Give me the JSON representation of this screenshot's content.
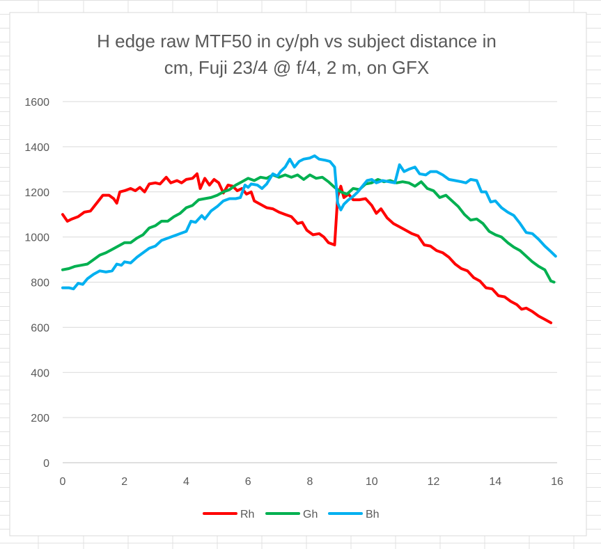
{
  "chart_data": {
    "type": "line",
    "title_lines": [
      "H edge raw MTF50 in cy/ph vs subject distance in",
      "cm, Fuji 23/4 @ f/4, 2 m, on GFX"
    ],
    "xlim": [
      0,
      16
    ],
    "ylim": [
      0,
      1600
    ],
    "x_ticks": [
      "0",
      "2",
      "4",
      "6",
      "8",
      "10",
      "12",
      "14",
      "16"
    ],
    "y_ticks": [
      "0",
      "200",
      "400",
      "600",
      "800",
      "1000",
      "1200",
      "1400",
      "1600"
    ],
    "grid": "horizontal",
    "legend_position": "bottom",
    "series": [
      {
        "name": "Rh",
        "color": "#ff0000",
        "points": [
          [
            0,
            1100
          ],
          [
            0.15,
            1070
          ],
          [
            0.3,
            1080
          ],
          [
            0.5,
            1090
          ],
          [
            0.7,
            1110
          ],
          [
            0.9,
            1115
          ],
          [
            1.1,
            1150
          ],
          [
            1.3,
            1185
          ],
          [
            1.5,
            1185
          ],
          [
            1.65,
            1170
          ],
          [
            1.75,
            1150
          ],
          [
            1.85,
            1200
          ],
          [
            2.0,
            1205
          ],
          [
            2.2,
            1215
          ],
          [
            2.35,
            1205
          ],
          [
            2.5,
            1220
          ],
          [
            2.65,
            1200
          ],
          [
            2.8,
            1235
          ],
          [
            3.0,
            1240
          ],
          [
            3.15,
            1235
          ],
          [
            3.35,
            1265
          ],
          [
            3.5,
            1240
          ],
          [
            3.7,
            1250
          ],
          [
            3.85,
            1240
          ],
          [
            4.0,
            1255
          ],
          [
            4.2,
            1260
          ],
          [
            4.35,
            1280
          ],
          [
            4.45,
            1215
          ],
          [
            4.6,
            1260
          ],
          [
            4.75,
            1230
          ],
          [
            4.9,
            1255
          ],
          [
            5.05,
            1240
          ],
          [
            5.2,
            1195
          ],
          [
            5.35,
            1230
          ],
          [
            5.5,
            1225
          ],
          [
            5.65,
            1205
          ],
          [
            5.8,
            1215
          ],
          [
            5.95,
            1190
          ],
          [
            6.1,
            1200
          ],
          [
            6.2,
            1160
          ],
          [
            6.4,
            1145
          ],
          [
            6.6,
            1130
          ],
          [
            6.8,
            1125
          ],
          [
            7.0,
            1110
          ],
          [
            7.2,
            1100
          ],
          [
            7.4,
            1090
          ],
          [
            7.6,
            1060
          ],
          [
            7.75,
            1065
          ],
          [
            7.9,
            1030
          ],
          [
            8.1,
            1010
          ],
          [
            8.3,
            1015
          ],
          [
            8.45,
            1000
          ],
          [
            8.6,
            975
          ],
          [
            8.8,
            965
          ],
          [
            8.9,
            1180
          ],
          [
            9.0,
            1225
          ],
          [
            9.1,
            1175
          ],
          [
            9.25,
            1190
          ],
          [
            9.4,
            1165
          ],
          [
            9.6,
            1165
          ],
          [
            9.8,
            1170
          ],
          [
            10.0,
            1140
          ],
          [
            10.15,
            1105
          ],
          [
            10.3,
            1125
          ],
          [
            10.5,
            1085
          ],
          [
            10.7,
            1060
          ],
          [
            10.9,
            1045
          ],
          [
            11.1,
            1030
          ],
          [
            11.3,
            1015
          ],
          [
            11.5,
            1005
          ],
          [
            11.7,
            965
          ],
          [
            11.9,
            960
          ],
          [
            12.1,
            940
          ],
          [
            12.3,
            930
          ],
          [
            12.5,
            910
          ],
          [
            12.7,
            880
          ],
          [
            12.9,
            860
          ],
          [
            13.1,
            850
          ],
          [
            13.3,
            820
          ],
          [
            13.5,
            805
          ],
          [
            13.7,
            775
          ],
          [
            13.9,
            770
          ],
          [
            14.1,
            740
          ],
          [
            14.3,
            735
          ],
          [
            14.5,
            715
          ],
          [
            14.7,
            700
          ],
          [
            14.85,
            680
          ],
          [
            15.0,
            685
          ],
          [
            15.2,
            670
          ],
          [
            15.4,
            650
          ],
          [
            15.6,
            635
          ],
          [
            15.8,
            620
          ]
        ]
      },
      {
        "name": "Gh",
        "color": "#00b050",
        "points": [
          [
            0,
            855
          ],
          [
            0.2,
            860
          ],
          [
            0.4,
            870
          ],
          [
            0.6,
            875
          ],
          [
            0.8,
            880
          ],
          [
            1.0,
            900
          ],
          [
            1.2,
            920
          ],
          [
            1.4,
            930
          ],
          [
            1.6,
            945
          ],
          [
            1.8,
            960
          ],
          [
            2.0,
            975
          ],
          [
            2.2,
            975
          ],
          [
            2.4,
            995
          ],
          [
            2.6,
            1010
          ],
          [
            2.8,
            1040
          ],
          [
            3.0,
            1050
          ],
          [
            3.2,
            1070
          ],
          [
            3.4,
            1070
          ],
          [
            3.6,
            1090
          ],
          [
            3.8,
            1105
          ],
          [
            4.0,
            1130
          ],
          [
            4.2,
            1140
          ],
          [
            4.4,
            1165
          ],
          [
            4.6,
            1170
          ],
          [
            4.8,
            1175
          ],
          [
            5.0,
            1185
          ],
          [
            5.2,
            1200
          ],
          [
            5.4,
            1210
          ],
          [
            5.6,
            1230
          ],
          [
            5.8,
            1245
          ],
          [
            6.0,
            1260
          ],
          [
            6.2,
            1250
          ],
          [
            6.4,
            1265
          ],
          [
            6.6,
            1260
          ],
          [
            6.8,
            1275
          ],
          [
            7.0,
            1265
          ],
          [
            7.2,
            1275
          ],
          [
            7.4,
            1265
          ],
          [
            7.6,
            1275
          ],
          [
            7.8,
            1255
          ],
          [
            8.0,
            1275
          ],
          [
            8.2,
            1260
          ],
          [
            8.4,
            1265
          ],
          [
            8.6,
            1245
          ],
          [
            8.8,
            1220
          ],
          [
            9.0,
            1200
          ],
          [
            9.2,
            1190
          ],
          [
            9.4,
            1215
          ],
          [
            9.6,
            1210
          ],
          [
            9.8,
            1235
          ],
          [
            10.0,
            1240
          ],
          [
            10.2,
            1255
          ],
          [
            10.4,
            1245
          ],
          [
            10.6,
            1250
          ],
          [
            10.8,
            1240
          ],
          [
            11.0,
            1245
          ],
          [
            11.2,
            1240
          ],
          [
            11.4,
            1225
          ],
          [
            11.6,
            1245
          ],
          [
            11.8,
            1215
          ],
          [
            12.0,
            1205
          ],
          [
            12.2,
            1175
          ],
          [
            12.4,
            1185
          ],
          [
            12.6,
            1160
          ],
          [
            12.8,
            1135
          ],
          [
            13.0,
            1100
          ],
          [
            13.2,
            1075
          ],
          [
            13.4,
            1080
          ],
          [
            13.6,
            1060
          ],
          [
            13.8,
            1025
          ],
          [
            14.0,
            1010
          ],
          [
            14.2,
            1000
          ],
          [
            14.4,
            975
          ],
          [
            14.6,
            955
          ],
          [
            14.8,
            940
          ],
          [
            15.0,
            915
          ],
          [
            15.2,
            890
          ],
          [
            15.4,
            870
          ],
          [
            15.6,
            855
          ],
          [
            15.8,
            805
          ],
          [
            15.9,
            800
          ]
        ]
      },
      {
        "name": "Bh",
        "color": "#00b0f0",
        "points": [
          [
            0,
            775
          ],
          [
            0.2,
            775
          ],
          [
            0.35,
            770
          ],
          [
            0.5,
            795
          ],
          [
            0.65,
            790
          ],
          [
            0.8,
            815
          ],
          [
            1.0,
            835
          ],
          [
            1.2,
            850
          ],
          [
            1.4,
            845
          ],
          [
            1.6,
            850
          ],
          [
            1.75,
            880
          ],
          [
            1.9,
            875
          ],
          [
            2.0,
            890
          ],
          [
            2.2,
            885
          ],
          [
            2.4,
            910
          ],
          [
            2.6,
            930
          ],
          [
            2.8,
            950
          ],
          [
            3.0,
            960
          ],
          [
            3.2,
            985
          ],
          [
            3.4,
            995
          ],
          [
            3.6,
            1005
          ],
          [
            3.8,
            1015
          ],
          [
            4.0,
            1025
          ],
          [
            4.15,
            1070
          ],
          [
            4.3,
            1065
          ],
          [
            4.5,
            1095
          ],
          [
            4.6,
            1080
          ],
          [
            4.8,
            1115
          ],
          [
            5.0,
            1135
          ],
          [
            5.2,
            1160
          ],
          [
            5.4,
            1170
          ],
          [
            5.6,
            1170
          ],
          [
            5.75,
            1175
          ],
          [
            5.9,
            1230
          ],
          [
            6.0,
            1220
          ],
          [
            6.1,
            1235
          ],
          [
            6.3,
            1230
          ],
          [
            6.45,
            1215
          ],
          [
            6.6,
            1235
          ],
          [
            6.8,
            1280
          ],
          [
            6.95,
            1270
          ],
          [
            7.05,
            1290
          ],
          [
            7.2,
            1310
          ],
          [
            7.35,
            1345
          ],
          [
            7.5,
            1310
          ],
          [
            7.65,
            1335
          ],
          [
            7.8,
            1345
          ],
          [
            8.0,
            1350
          ],
          [
            8.15,
            1360
          ],
          [
            8.3,
            1345
          ],
          [
            8.5,
            1340
          ],
          [
            8.65,
            1335
          ],
          [
            8.8,
            1310
          ],
          [
            8.9,
            1150
          ],
          [
            9.0,
            1120
          ],
          [
            9.1,
            1145
          ],
          [
            9.25,
            1165
          ],
          [
            9.4,
            1180
          ],
          [
            9.55,
            1200
          ],
          [
            9.7,
            1225
          ],
          [
            9.85,
            1250
          ],
          [
            10.0,
            1255
          ],
          [
            10.15,
            1240
          ],
          [
            10.35,
            1250
          ],
          [
            10.55,
            1245
          ],
          [
            10.75,
            1240
          ],
          [
            10.9,
            1320
          ],
          [
            11.05,
            1290
          ],
          [
            11.2,
            1300
          ],
          [
            11.4,
            1310
          ],
          [
            11.55,
            1280
          ],
          [
            11.75,
            1275
          ],
          [
            11.9,
            1290
          ],
          [
            12.1,
            1290
          ],
          [
            12.3,
            1275
          ],
          [
            12.5,
            1255
          ],
          [
            12.7,
            1250
          ],
          [
            12.9,
            1245
          ],
          [
            13.05,
            1240
          ],
          [
            13.2,
            1255
          ],
          [
            13.4,
            1250
          ],
          [
            13.55,
            1200
          ],
          [
            13.7,
            1200
          ],
          [
            13.85,
            1155
          ],
          [
            14.0,
            1160
          ],
          [
            14.2,
            1130
          ],
          [
            14.4,
            1110
          ],
          [
            14.6,
            1095
          ],
          [
            14.8,
            1060
          ],
          [
            15.0,
            1020
          ],
          [
            15.2,
            1015
          ],
          [
            15.4,
            990
          ],
          [
            15.6,
            960
          ],
          [
            15.8,
            935
          ],
          [
            15.95,
            915
          ]
        ]
      }
    ]
  }
}
